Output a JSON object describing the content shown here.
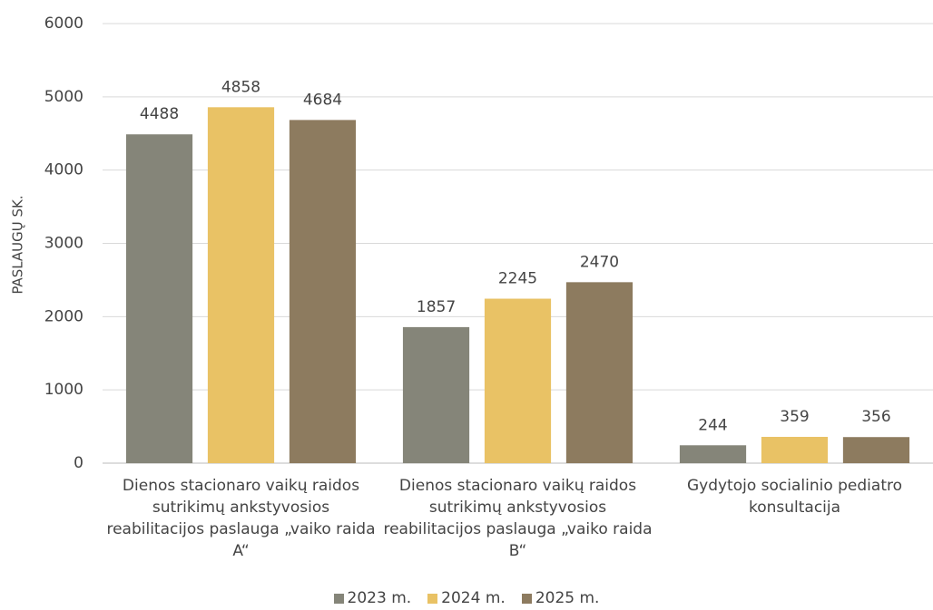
{
  "chart_data": {
    "type": "bar",
    "y_label": "PASLAUGŲ SK.",
    "categories": [
      "Dienos stacionaro vaikų raidos sutrikimų ankstyvosios reabilitacijos paslauga „vaiko raida A“",
      "Dienos stacionaro vaikų raidos sutrikimų ankstyvosios reabilitacijos paslauga „vaiko raida B“",
      "Gydytojo socialinio pediatro konsultacija"
    ],
    "series": [
      {
        "name": "2023 m.",
        "color": "#858579",
        "values": [
          4488,
          1857,
          244
        ]
      },
      {
        "name": "2024 m.",
        "color": "#e9c265",
        "values": [
          4858,
          2245,
          359
        ]
      },
      {
        "name": "2025 m.",
        "color": "#8d7b5f",
        "values": [
          4684,
          2470,
          356
        ]
      }
    ],
    "ylim": [
      0,
      6000
    ],
    "yticks": [
      0,
      1000,
      2000,
      3000,
      4000,
      5000,
      6000
    ],
    "grid": true,
    "legend": "bottom"
  }
}
